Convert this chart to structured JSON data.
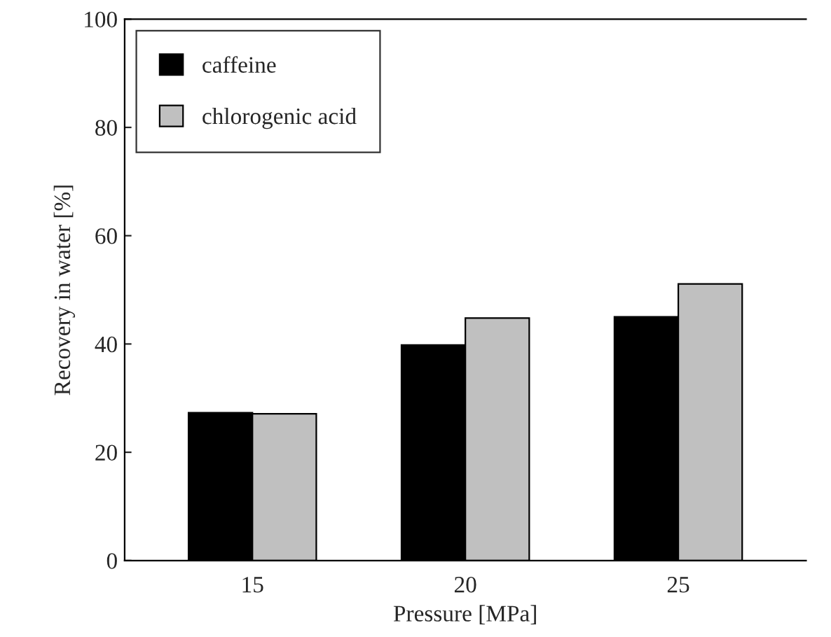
{
  "chart_data": {
    "type": "bar",
    "xlabel": "Pressure [MPa]",
    "ylabel": "Recovery in water [%]",
    "categories": [
      "15",
      "20",
      "25"
    ],
    "series": [
      {
        "name": "caffeine",
        "color": "#000000",
        "values": [
          27.3,
          39.8,
          45.0
        ]
      },
      {
        "name": "chlorogenic acid",
        "color": "#c0c0c0",
        "values": [
          27.1,
          44.8,
          51.1
        ]
      }
    ],
    "ylim": [
      0,
      100
    ],
    "yticks": [
      0,
      20,
      40,
      60,
      80,
      100
    ],
    "grid": false,
    "legend": "top left"
  }
}
